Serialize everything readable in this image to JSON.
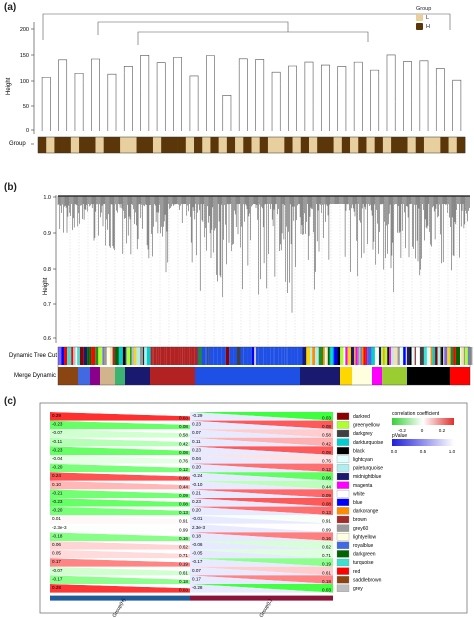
{
  "panels": {
    "a": {
      "label": "(a)",
      "ylabel": "Height",
      "yticks": [
        "200",
        "150",
        "100",
        "50",
        "0"
      ],
      "group_row_label": "Group",
      "legend": {
        "title": "Group",
        "items": [
          {
            "label": "L",
            "color": "#e8cf9e"
          },
          {
            "label": "H",
            "color": "#5a3608"
          }
        ]
      },
      "group_bar": [
        "H",
        "L",
        "H",
        "H",
        "L",
        "H",
        "H",
        "L",
        "H",
        "H",
        "L",
        "L",
        "H",
        "H",
        "L",
        "H",
        "H",
        "H",
        "L",
        "H",
        "L",
        "H",
        "L",
        "H",
        "L",
        "H",
        "L",
        "H",
        "L",
        "L",
        "H",
        "L",
        "H",
        "L",
        "H",
        "H",
        "L",
        "H",
        "L",
        "H",
        "L",
        "H",
        "L",
        "H",
        "H",
        "L",
        "H",
        "L",
        "L",
        "H",
        "L",
        "H"
      ]
    },
    "b": {
      "label": "(b)",
      "ylabel": "Height",
      "yticks": [
        "1.0",
        "0.9",
        "0.8",
        "0.7",
        "0.6"
      ],
      "row1_label": "Dynamic Tree Cut",
      "row2_label": "Merge Dynamic"
    },
    "c": {
      "label": "(c)",
      "rows": [
        {
          "module": "darkred",
          "color": "#8b0000",
          "h": "0.29",
          "ph": "0.03",
          "l": "-0.29",
          "pl": "0.03"
        },
        {
          "module": "greenyellow",
          "color": "#adff2f",
          "h": "-0.23",
          "ph": "0.08",
          "l": "0.23",
          "pl": "0.08"
        },
        {
          "module": "darkgrey",
          "color": "#404040",
          "h": "-0.07",
          "ph": "0.58",
          "l": "0.07",
          "pl": "0.58"
        },
        {
          "module": "darkturquoise",
          "color": "#00ced1",
          "h": "-0.11",
          "ph": "0.42",
          "l": "0.11",
          "pl": "0.42"
        },
        {
          "module": "black",
          "color": "#000000",
          "h": "-0.23",
          "ph": "0.08",
          "l": "0.23",
          "pl": "0.08"
        },
        {
          "module": "lightcyan",
          "color": "#e0ffff",
          "h": "-0.04",
          "ph": "0.76",
          "l": "0.04",
          "pl": "0.76"
        },
        {
          "module": "paleturquoise",
          "color": "#afeeee",
          "h": "-0.20",
          "ph": "0.12",
          "l": "0.20",
          "pl": "0.12"
        },
        {
          "module": "midnightblue",
          "color": "#191970",
          "h": "0.24",
          "ph": "0.06",
          "l": "-0.24",
          "pl": "0.06"
        },
        {
          "module": "magenta",
          "color": "#ff00ff",
          "h": "0.10",
          "ph": "0.44",
          "l": "-0.10",
          "pl": "0.44"
        },
        {
          "module": "white",
          "color": "#ffffff",
          "h": "-0.21",
          "ph": "0.09",
          "l": "0.21",
          "pl": "0.09"
        },
        {
          "module": "blue",
          "color": "#0000ff",
          "h": "-0.23",
          "ph": "0.08",
          "l": "0.23",
          "pl": "0.08"
        },
        {
          "module": "darkorange",
          "color": "#ff8c00",
          "h": "-0.20",
          "ph": "0.13",
          "l": "0.20",
          "pl": "0.13"
        },
        {
          "module": "brown",
          "color": "#a52a2a",
          "h": "0.01",
          "ph": "0.91",
          "l": "-0.01",
          "pl": "0.91"
        },
        {
          "module": "grey60",
          "color": "#999999",
          "h": "-2.3e-3",
          "ph": "0.99",
          "l": "2.3e-3",
          "pl": "0.99"
        },
        {
          "module": "lightyellow",
          "color": "#ffffe0",
          "h": "-0.18",
          "ph": "0.16",
          "l": "0.18",
          "pl": "0.16"
        },
        {
          "module": "royalblue",
          "color": "#4169e1",
          "h": "0.06",
          "ph": "0.62",
          "l": "-0.06",
          "pl": "0.62"
        },
        {
          "module": "darkgreen",
          "color": "#006400",
          "h": "0.05",
          "ph": "0.71",
          "l": "-0.05",
          "pl": "0.71"
        },
        {
          "module": "turquoise",
          "color": "#40e0d0",
          "h": "0.17",
          "ph": "0.19",
          "l": "-0.17",
          "pl": "0.19"
        },
        {
          "module": "red",
          "color": "#ff0000",
          "h": "-0.07",
          "ph": "0.61",
          "l": "0.07",
          "pl": "0.61"
        },
        {
          "module": "saddlebrown",
          "color": "#8b4513",
          "h": "-0.17",
          "ph": "0.18",
          "l": "0.17",
          "pl": "0.18"
        },
        {
          "module": "grey",
          "color": "#bebebe",
          "h": "0.28",
          "ph": "0.03",
          "l": "-0.28",
          "pl": "0.03"
        }
      ],
      "xlabels": [
        "Group(H)",
        "Group(L)"
      ],
      "legend": {
        "title1": "correlation coefficient",
        "ticks1": [
          "-0.2",
          "0",
          "0.2"
        ],
        "title2": "pValue",
        "ticks2": [
          "0.0",
          "0.5",
          "1.0"
        ]
      }
    }
  }
}
